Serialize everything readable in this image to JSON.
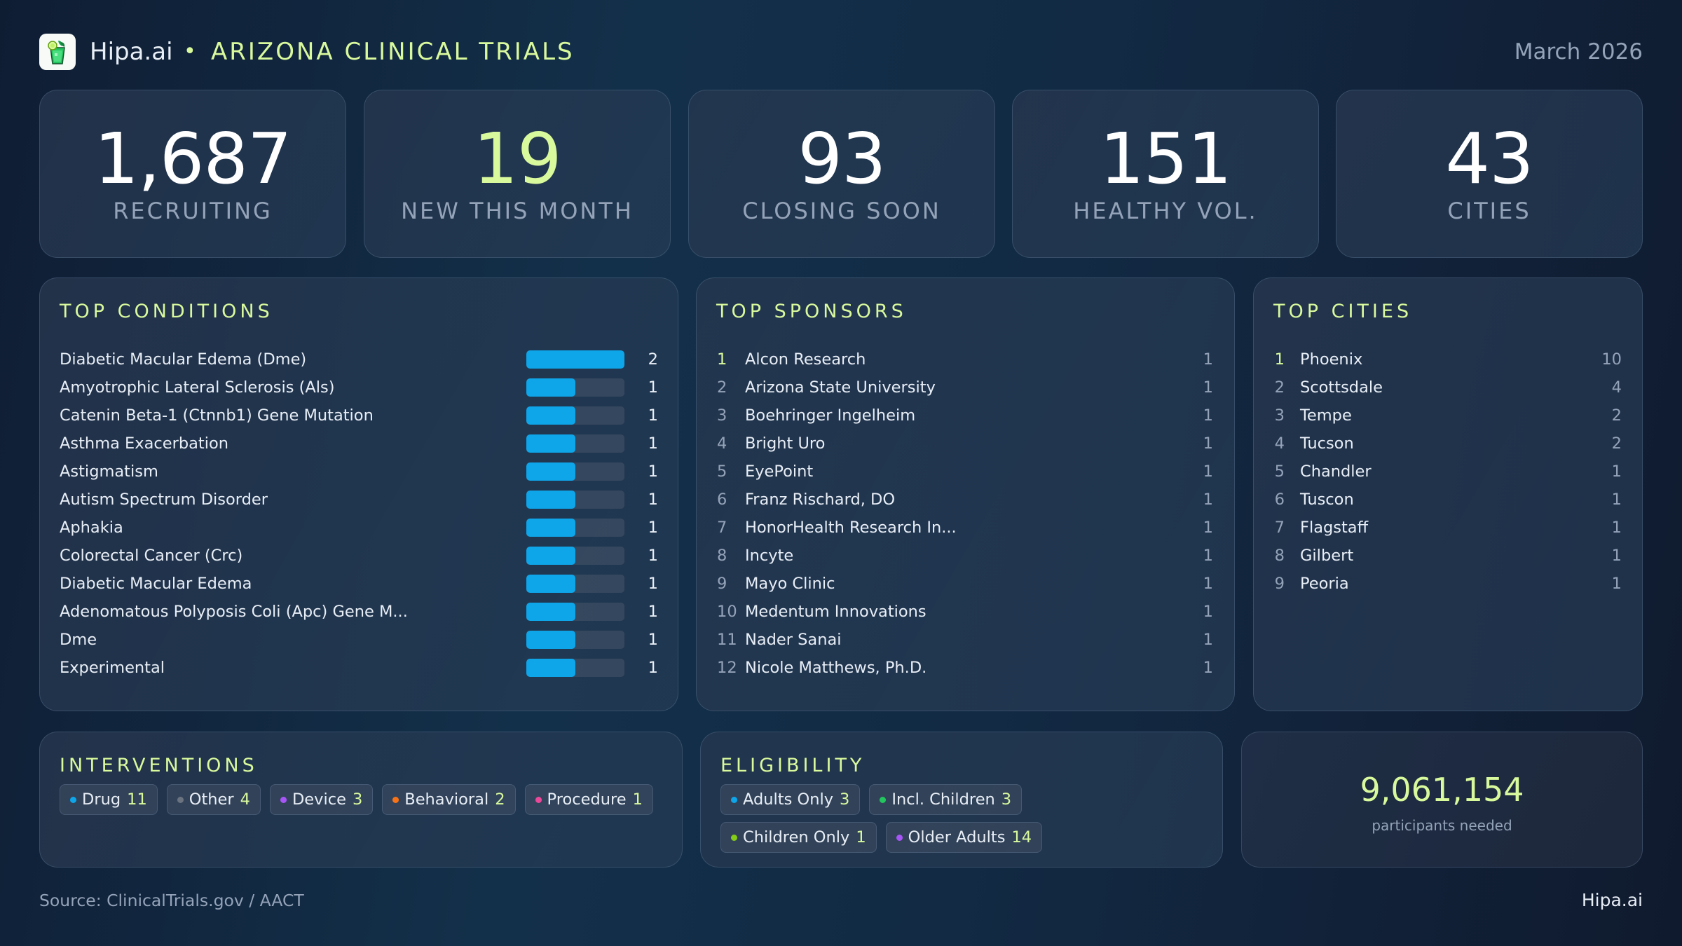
{
  "header": {
    "brand": "Hipa.ai",
    "separator": "•",
    "title": "ARIZONA CLINICAL TRIALS",
    "date": "March 2026",
    "logo_icon": "mojito-glass-icon"
  },
  "stats": [
    {
      "value": "1,687",
      "label": "RECRUITING",
      "accent": false
    },
    {
      "value": "19",
      "label": "NEW THIS MONTH",
      "accent": true
    },
    {
      "value": "93",
      "label": "CLOSING SOON",
      "accent": false
    },
    {
      "value": "151",
      "label": "HEALTHY VOL.",
      "accent": false
    },
    {
      "value": "43",
      "label": "CITIES",
      "accent": false
    }
  ],
  "conditions": {
    "title": "TOP CONDITIONS",
    "max": 2,
    "bar_color": "#0ea5e9",
    "items": [
      {
        "name": "Diabetic Macular Edema (Dme)",
        "count": "2"
      },
      {
        "name": "Amyotrophic Lateral Sclerosis (Als)",
        "count": "1"
      },
      {
        "name": "Catenin Beta-1 (Ctnnb1) Gene Mutation",
        "count": "1"
      },
      {
        "name": "Asthma Exacerbation",
        "count": "1"
      },
      {
        "name": "Astigmatism",
        "count": "1"
      },
      {
        "name": "Autism Spectrum Disorder",
        "count": "1"
      },
      {
        "name": "Aphakia",
        "count": "1"
      },
      {
        "name": "Colorectal Cancer (Crc)",
        "count": "1"
      },
      {
        "name": "Diabetic Macular Edema",
        "count": "1"
      },
      {
        "name": "Adenomatous Polyposis Coli (Apc) Gene M...",
        "count": "1"
      },
      {
        "name": "Dme",
        "count": "1"
      },
      {
        "name": "Experimental",
        "count": "1"
      }
    ]
  },
  "sponsors": {
    "title": "TOP SPONSORS",
    "items": [
      {
        "rank": "1",
        "name": "Alcon Research",
        "count": "1"
      },
      {
        "rank": "2",
        "name": "Arizona State University",
        "count": "1"
      },
      {
        "rank": "3",
        "name": "Boehringer Ingelheim",
        "count": "1"
      },
      {
        "rank": "4",
        "name": "Bright Uro",
        "count": "1"
      },
      {
        "rank": "5",
        "name": "EyePoint",
        "count": "1"
      },
      {
        "rank": "6",
        "name": "Franz Rischard, DO",
        "count": "1"
      },
      {
        "rank": "7",
        "name": "HonorHealth Research In...",
        "count": "1"
      },
      {
        "rank": "8",
        "name": "Incyte",
        "count": "1"
      },
      {
        "rank": "9",
        "name": "Mayo Clinic",
        "count": "1"
      },
      {
        "rank": "10",
        "name": "Medentum Innovations",
        "count": "1"
      },
      {
        "rank": "11",
        "name": "Nader Sanai",
        "count": "1"
      },
      {
        "rank": "12",
        "name": "Nicole Matthews, Ph.D.",
        "count": "1"
      }
    ]
  },
  "cities": {
    "title": "TOP CITIES",
    "items": [
      {
        "rank": "1",
        "name": "Phoenix",
        "count": "10"
      },
      {
        "rank": "2",
        "name": "Scottsdale",
        "count": "4"
      },
      {
        "rank": "3",
        "name": "Tempe",
        "count": "2"
      },
      {
        "rank": "4",
        "name": "Tucson",
        "count": "2"
      },
      {
        "rank": "5",
        "name": "Chandler",
        "count": "1"
      },
      {
        "rank": "6",
        "name": "Tuscon",
        "count": "1"
      },
      {
        "rank": "7",
        "name": "Flagstaff",
        "count": "1"
      },
      {
        "rank": "8",
        "name": "Gilbert",
        "count": "1"
      },
      {
        "rank": "9",
        "name": "Peoria",
        "count": "1"
      }
    ]
  },
  "interventions": {
    "title": "INTERVENTIONS",
    "items": [
      {
        "label": "Drug",
        "count": "11",
        "color": "#0ea5e9"
      },
      {
        "label": "Other",
        "count": "4",
        "color": "#6b7280"
      },
      {
        "label": "Device",
        "count": "3",
        "color": "#a855f7"
      },
      {
        "label": "Behavioral",
        "count": "2",
        "color": "#f97316"
      },
      {
        "label": "Procedure",
        "count": "1",
        "color": "#ec4899"
      }
    ]
  },
  "eligibility": {
    "title": "ELIGIBILITY",
    "items": [
      {
        "label": "Adults Only",
        "count": "3",
        "color": "#0ea5e9"
      },
      {
        "label": "Incl. Children",
        "count": "3",
        "color": "#22c55e"
      },
      {
        "label": "Children Only",
        "count": "1",
        "color": "#84cc16"
      },
      {
        "label": "Older Adults",
        "count": "14",
        "color": "#a855f7"
      }
    ]
  },
  "participants": {
    "value": "9,061,154",
    "caption": "participants needed"
  },
  "footer": {
    "source": "Source: ClinicalTrials.gov / AACT",
    "brand": "Hipa.ai"
  },
  "colors": {
    "accent": "#d9f99d",
    "bar": "#0ea5e9",
    "muted": "#94a3b8"
  }
}
